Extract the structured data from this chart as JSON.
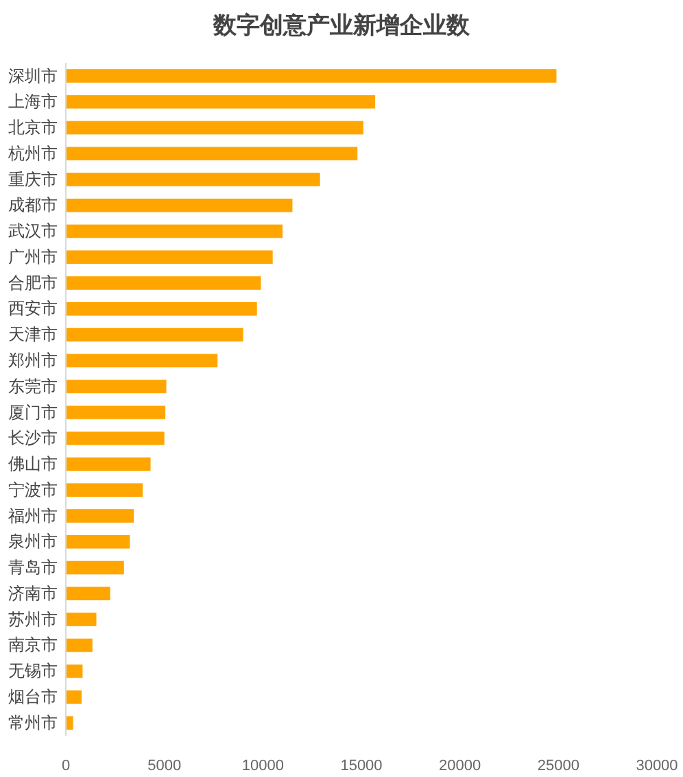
{
  "chart_data": {
    "type": "bar",
    "orientation": "horizontal",
    "title": "数字创意产业新增企业数",
    "categories": [
      "深圳市",
      "上海市",
      "北京市",
      "杭州市",
      "重庆市",
      "成都市",
      "武汉市",
      "广州市",
      "合肥市",
      "西安市",
      "天津市",
      "郑州市",
      "东莞市",
      "厦门市",
      "长沙市",
      "佛山市",
      "宁波市",
      "福州市",
      "泉州市",
      "青岛市",
      "济南市",
      "苏州市",
      "南京市",
      "无锡市",
      "烟台市",
      "常州市"
    ],
    "values": [
      24900,
      15700,
      15100,
      14800,
      12900,
      11500,
      11000,
      10500,
      9900,
      9700,
      9000,
      7700,
      5100,
      5050,
      5000,
      4300,
      3900,
      3450,
      3250,
      2950,
      2250,
      1550,
      1350,
      850,
      800,
      370
    ],
    "color": "#ffa500",
    "xlim": [
      0,
      30000
    ],
    "xticks": [
      0,
      5000,
      10000,
      15000,
      20000,
      25000,
      30000
    ],
    "grid": false
  }
}
